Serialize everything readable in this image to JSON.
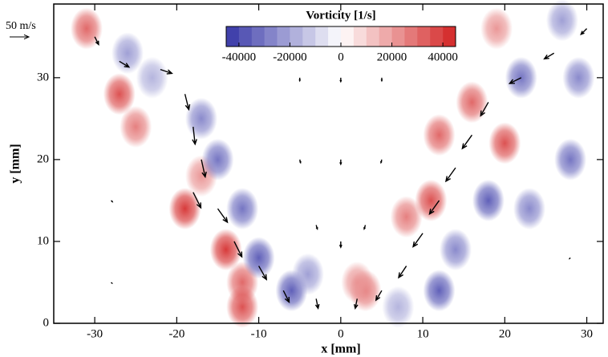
{
  "chart_data": {
    "type": "vector-field",
    "xlabel": "x [mm]",
    "ylabel": "y [mm]",
    "xlim": [
      -35,
      32
    ],
    "ylim": [
      0,
      39
    ],
    "xticks": [
      -30,
      -20,
      -10,
      0,
      10,
      20,
      30
    ],
    "yticks": [
      0,
      10,
      20,
      30
    ],
    "colorbar": {
      "title": "Vorticity [1/s]",
      "clim": [
        -45000,
        45000
      ],
      "levels": 18,
      "cmap": [
        "#3636a6",
        "#ffffff",
        "#d22424"
      ],
      "ticks": [
        -40000,
        -20000,
        0,
        20000,
        40000
      ]
    },
    "reference_vector": {
      "value": 50,
      "label": "50 m/s"
    },
    "vorticity": {
      "x": [
        -31,
        -27,
        -25,
        -19,
        -17,
        -14,
        -12,
        -12,
        -17,
        -15,
        -12,
        -10,
        -6,
        -4,
        -26,
        -23,
        11,
        12,
        16,
        20,
        19,
        8,
        3,
        2,
        18,
        23,
        14,
        12,
        28,
        29,
        22,
        27,
        7
      ],
      "y": [
        36,
        28,
        24,
        14,
        18,
        9,
        5,
        2,
        25,
        20,
        14,
        8,
        4,
        6,
        33,
        30,
        15,
        23,
        27,
        22,
        36,
        13,
        4,
        5,
        15,
        14,
        9,
        4,
        20,
        30,
        30,
        37,
        2
      ],
      "values": [
        30000,
        35000,
        25000,
        40000,
        20000,
        40000,
        30000,
        35000,
        -30000,
        -35000,
        -35000,
        -40000,
        -40000,
        -25000,
        -25000,
        -20000,
        35000,
        30000,
        30000,
        35000,
        20000,
        25000,
        25000,
        20000,
        -40000,
        -30000,
        -30000,
        -40000,
        -35000,
        -30000,
        -35000,
        -25000,
        -20000
      ]
    },
    "vectors": {
      "x": [
        -30,
        -27,
        -22,
        -19,
        -18,
        -17,
        -18,
        -15,
        -13,
        -10,
        -7,
        -3,
        30,
        26,
        22,
        18,
        16,
        14,
        12,
        10,
        8,
        5,
        2,
        -5,
        0,
        5,
        -5,
        0,
        5,
        0,
        -28,
        -28,
        28,
        -3,
        3
      ],
      "y": [
        35,
        32,
        31,
        28,
        24,
        20,
        16,
        14,
        10,
        7,
        4,
        3,
        36,
        33,
        30,
        27,
        23,
        19,
        15,
        11,
        7,
        4,
        3,
        30,
        30,
        30,
        20,
        20,
        20,
        10,
        15,
        5,
        8,
        12,
        12
      ],
      "u": [
        10,
        25,
        30,
        10,
        5,
        10,
        20,
        25,
        20,
        20,
        15,
        5,
        -15,
        -25,
        -30,
        -20,
        -25,
        -25,
        -25,
        -25,
        -20,
        -15,
        -5,
        0,
        0,
        0,
        2,
        0,
        -2,
        0,
        3,
        2,
        -2,
        3,
        -3
      ],
      "v": [
        -20,
        -15,
        -10,
        -40,
        -45,
        -45,
        -40,
        -35,
        -40,
        -35,
        -30,
        -25,
        -15,
        -15,
        -15,
        -35,
        -35,
        -35,
        -35,
        -35,
        -30,
        -25,
        -25,
        -8,
        -10,
        -8,
        -8,
        -12,
        -8,
        -15,
        -3,
        -2,
        -2,
        -10,
        -10
      ]
    }
  }
}
